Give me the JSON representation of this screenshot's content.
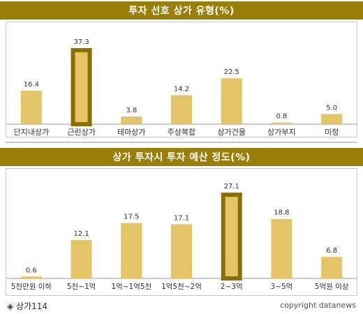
{
  "colors": {
    "header_bg": "#9b7e08",
    "bar": "#e3c466",
    "bar_highlight_border": "#8b6f05",
    "text": "#333333"
  },
  "footer": {
    "source": "◈ 상가114",
    "copyright": "copyright datanews"
  },
  "chart_data": [
    {
      "type": "bar",
      "title": "투자 선호 상가 유형(%)",
      "categories": [
        "단지내상가",
        "근린상가",
        "테마상가",
        "주상복합",
        "상가건물",
        "상가부지",
        "미정"
      ],
      "values": [
        16.4,
        37.3,
        3.8,
        14.2,
        22.5,
        0.8,
        5.0
      ],
      "value_labels": [
        "16.4",
        "37.3",
        "3.8",
        "14.2",
        "22.5",
        "0.8",
        "5.0"
      ],
      "highlight_index": 1,
      "ylim": [
        0,
        40
      ],
      "grid": false,
      "xlabel": "",
      "ylabel": ""
    },
    {
      "type": "bar",
      "title": "상가 투자시 투자 예산 정도(%)",
      "categories": [
        "5천만원 이하",
        "5천~1억",
        "1억~1억5천",
        "1억5천~2억",
        "2~3억",
        "3~5억",
        "5억원 이상"
      ],
      "values": [
        0.6,
        12.1,
        17.5,
        17.1,
        27.1,
        18.8,
        6.8
      ],
      "value_labels": [
        "0.6",
        "12.1",
        "17.5",
        "17.1",
        "27.1",
        "18.8",
        "6.8"
      ],
      "highlight_index": 4,
      "ylim": [
        0,
        28
      ],
      "grid": false,
      "xlabel": "",
      "ylabel": ""
    }
  ]
}
